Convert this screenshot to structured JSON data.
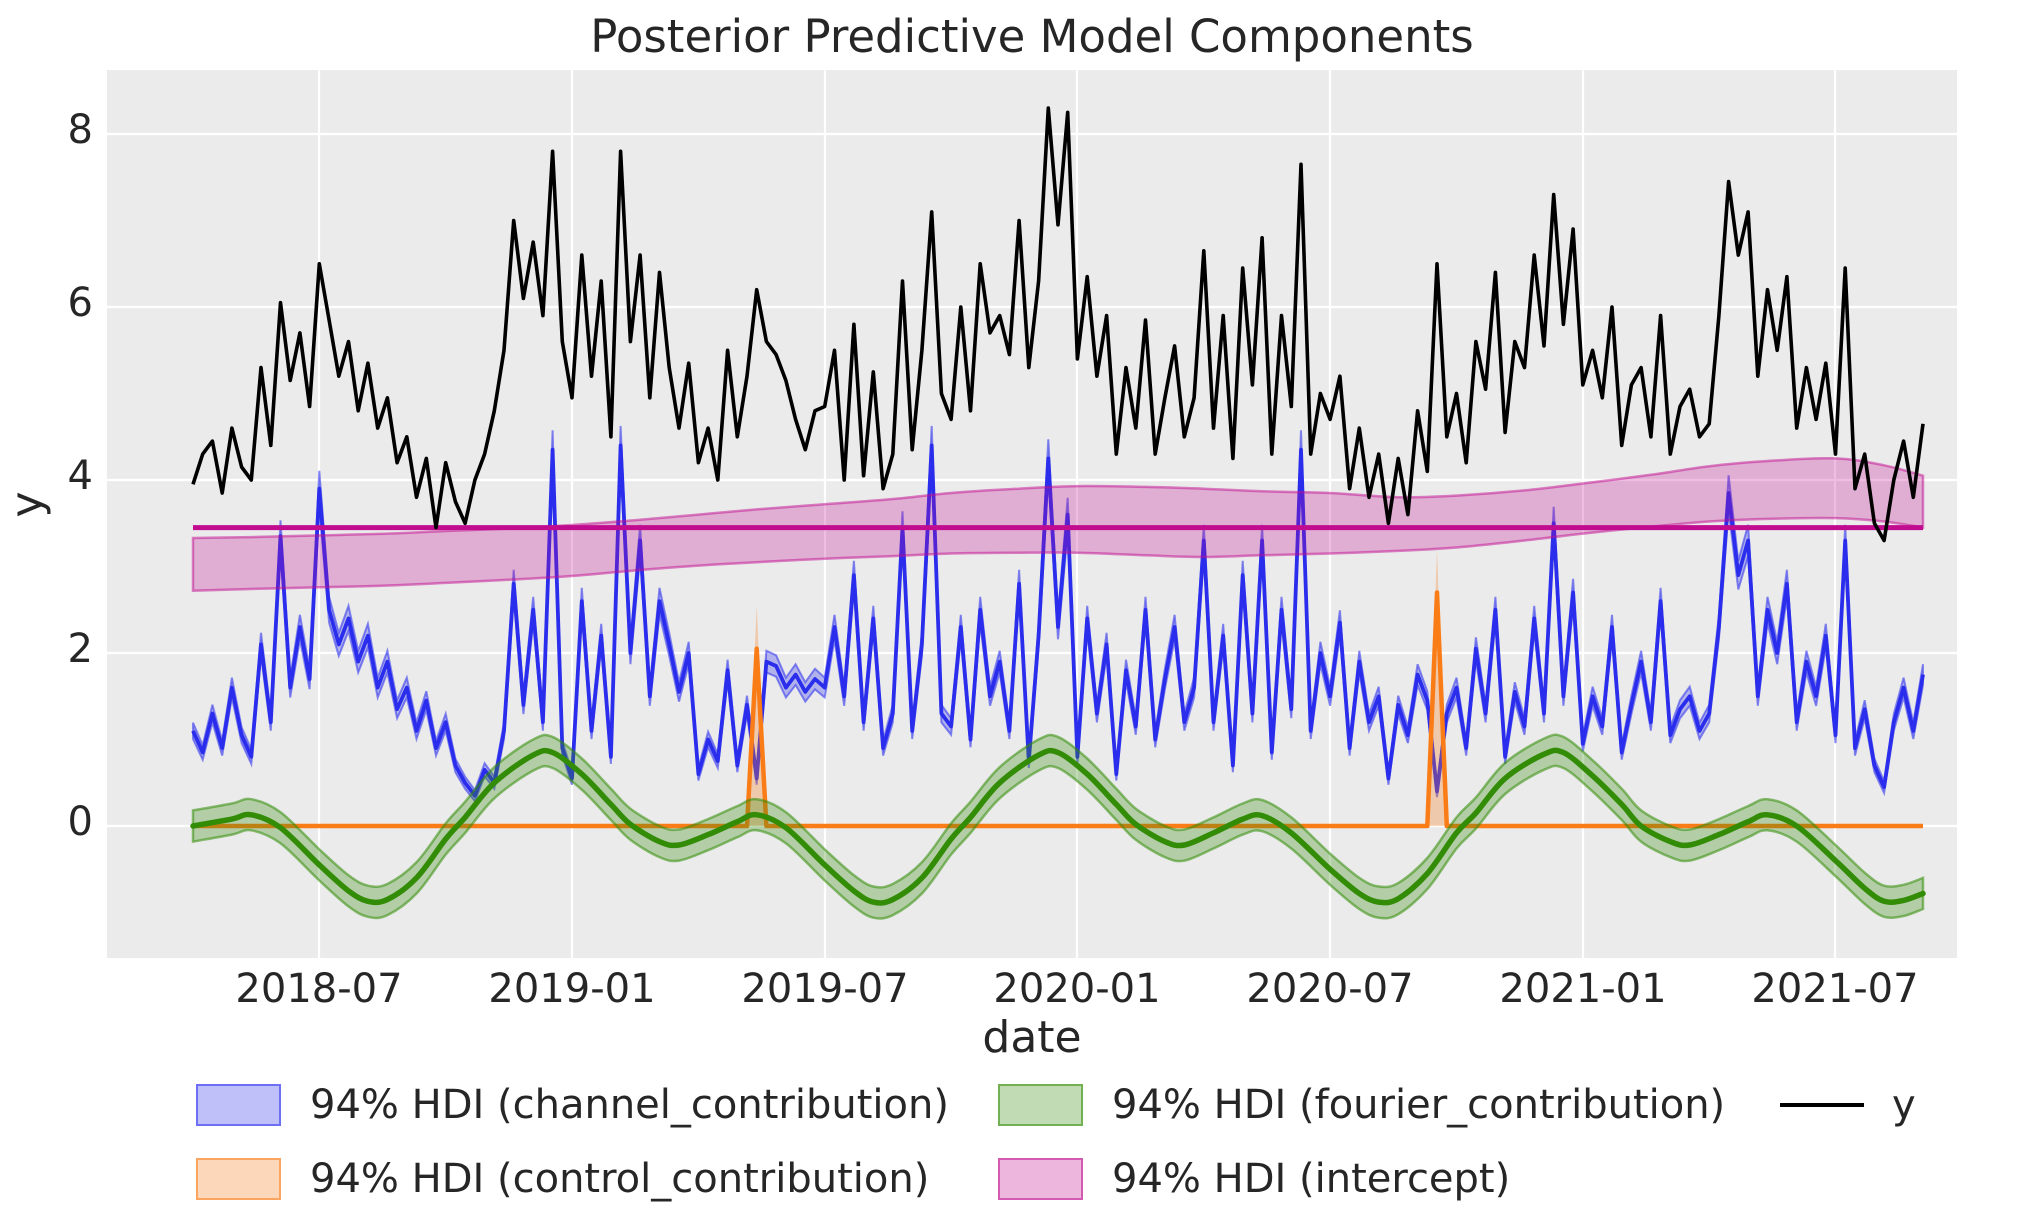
{
  "title": "Posterior Predictive Model Components",
  "axes": {
    "xlabel": "date",
    "ylabel": "y",
    "x_ticks": [
      "2018-07",
      "2019-01",
      "2019-07",
      "2020-01",
      "2020-07",
      "2021-01",
      "2021-07"
    ],
    "y_ticks": [
      "0",
      "2",
      "4",
      "6",
      "8"
    ]
  },
  "palette": {
    "channel": "#2a2eec",
    "control": "#fa7c17",
    "fourier": "#328c06",
    "intercept": "#c10c90",
    "y_line": "#000000",
    "plot_bg": "#ebebeb",
    "grid": "#ffffff",
    "text": "#262626",
    "band_alpha": 0.3,
    "band_edge_alpha": 0.55
  },
  "legend": [
    {
      "label": "94% HDI (channel_contribution)",
      "type": "patch",
      "color": "#2a2eec",
      "col": 0,
      "row": 0
    },
    {
      "label": "94% HDI (control_contribution)",
      "type": "patch",
      "color": "#fa7c17",
      "col": 0,
      "row": 1
    },
    {
      "label": "94% HDI (fourier_contribution)",
      "type": "patch",
      "color": "#328c06",
      "col": 1,
      "row": 0
    },
    {
      "label": "94% HDI (intercept)",
      "type": "patch",
      "color": "#c10c90",
      "col": 1,
      "row": 1
    },
    {
      "label": "y",
      "type": "line",
      "color": "#000000",
      "col": 2,
      "row": 0
    }
  ],
  "chart_data": {
    "type": "line",
    "title": "Posterior Predictive Model Components",
    "xlabel": "date",
    "ylabel": "y",
    "x_axis": {
      "start_date": "2018-04-02",
      "freq_days": 7,
      "n_points": 179,
      "tick_labels": [
        "2018-07",
        "2019-01",
        "2019-07",
        "2020-01",
        "2020-07",
        "2021-01",
        "2021-07"
      ]
    },
    "ylim": [
      -1.53,
      8.73
    ],
    "grid": true,
    "legend_position": "bottom",
    "series": [
      {
        "name": "y",
        "kind": "line",
        "color": "#000000",
        "values": [
          3.95,
          4.3,
          4.45,
          3.85,
          4.6,
          4.15,
          4.0,
          5.3,
          4.4,
          6.05,
          5.15,
          5.7,
          4.85,
          6.5,
          5.85,
          5.2,
          5.6,
          4.8,
          5.35,
          4.6,
          4.95,
          4.2,
          4.5,
          3.8,
          4.25,
          3.45,
          4.2,
          3.75,
          3.5,
          4.0,
          4.3,
          4.8,
          5.5,
          7.0,
          6.1,
          6.75,
          5.9,
          7.8,
          5.6,
          4.95,
          6.6,
          5.2,
          6.3,
          4.5,
          7.8,
          5.6,
          6.6,
          4.95,
          6.4,
          5.3,
          4.6,
          5.35,
          4.2,
          4.6,
          4.0,
          5.5,
          4.5,
          5.2,
          6.2,
          5.6,
          5.45,
          5.15,
          4.7,
          4.35,
          4.8,
          4.85,
          5.5,
          4.0,
          5.8,
          4.05,
          5.25,
          3.9,
          4.3,
          6.3,
          4.35,
          5.5,
          7.1,
          5.0,
          4.7,
          6.0,
          4.8,
          6.5,
          5.7,
          5.9,
          5.45,
          7.0,
          5.3,
          6.3,
          8.3,
          6.95,
          8.25,
          5.4,
          6.35,
          5.2,
          5.9,
          4.3,
          5.3,
          4.6,
          5.85,
          4.3,
          4.95,
          5.55,
          4.5,
          4.95,
          6.65,
          4.6,
          5.9,
          4.25,
          6.45,
          5.1,
          6.8,
          4.3,
          5.9,
          4.85,
          7.65,
          4.3,
          5.0,
          4.7,
          5.2,
          3.9,
          4.6,
          3.8,
          4.3,
          3.5,
          4.25,
          3.6,
          4.8,
          4.1,
          6.5,
          4.5,
          5.0,
          4.2,
          5.6,
          5.05,
          6.4,
          4.55,
          5.6,
          5.3,
          6.6,
          5.55,
          7.3,
          5.8,
          6.9,
          5.1,
          5.5,
          4.95,
          6.0,
          4.4,
          5.1,
          5.3,
          4.5,
          5.9,
          4.3,
          4.85,
          5.05,
          4.5,
          4.65,
          5.9,
          7.45,
          6.6,
          7.1,
          5.2,
          6.2,
          5.5,
          6.35,
          4.6,
          5.3,
          4.7,
          5.35,
          4.3,
          6.45,
          3.9,
          4.3,
          3.5,
          3.3,
          4.0,
          4.45,
          3.8,
          4.65
        ]
      },
      {
        "name": "channel_contribution",
        "kind": "line+hdi",
        "color": "#2a2eec",
        "hdi_label": "94% HDI (channel_contribution)",
        "hdi_halfwidth_base": 0.05,
        "hdi_halfwidth_scale": 0.04,
        "values": [
          1.1,
          0.85,
          1.3,
          0.9,
          1.6,
          1.05,
          0.8,
          2.1,
          1.2,
          3.35,
          1.6,
          2.3,
          1.7,
          3.9,
          2.5,
          2.1,
          2.4,
          1.9,
          2.2,
          1.6,
          1.9,
          1.35,
          1.6,
          1.1,
          1.45,
          0.9,
          1.2,
          0.7,
          0.5,
          0.35,
          0.65,
          0.5,
          1.1,
          2.8,
          1.4,
          2.5,
          1.2,
          4.35,
          0.9,
          0.55,
          2.6,
          1.1,
          2.2,
          0.8,
          4.4,
          2.0,
          3.3,
          1.5,
          2.6,
          2.1,
          1.55,
          2.0,
          0.6,
          1.0,
          0.75,
          1.8,
          0.7,
          1.4,
          0.55,
          1.9,
          1.85,
          1.6,
          1.75,
          1.55,
          1.7,
          1.6,
          2.3,
          1.5,
          2.9,
          1.2,
          2.4,
          0.9,
          1.3,
          3.45,
          1.1,
          2.1,
          4.4,
          1.3,
          1.15,
          2.3,
          1.0,
          2.5,
          1.5,
          1.9,
          1.1,
          2.8,
          0.75,
          2.2,
          4.25,
          2.3,
          3.6,
          0.8,
          2.4,
          1.3,
          2.1,
          0.6,
          1.8,
          1.15,
          2.5,
          1.0,
          1.7,
          2.3,
          1.2,
          1.6,
          3.3,
          1.2,
          2.2,
          0.7,
          2.9,
          1.3,
          3.3,
          0.85,
          2.5,
          1.35,
          4.35,
          1.1,
          2.0,
          1.5,
          2.35,
          0.9,
          1.9,
          1.2,
          1.5,
          0.55,
          1.4,
          1.05,
          1.75,
          1.45,
          0.4,
          1.3,
          1.6,
          0.9,
          2.05,
          1.3,
          2.5,
          0.8,
          1.55,
          1.15,
          2.4,
          1.3,
          3.5,
          1.5,
          2.7,
          0.95,
          1.5,
          1.15,
          2.3,
          0.85,
          1.4,
          1.9,
          1.2,
          2.6,
          1.05,
          1.35,
          1.5,
          1.1,
          1.3,
          2.3,
          3.85,
          2.9,
          3.3,
          1.5,
          2.5,
          2.0,
          2.8,
          1.2,
          1.9,
          1.5,
          2.2,
          1.05,
          3.3,
          0.9,
          1.35,
          0.7,
          0.45,
          1.2,
          1.6,
          1.1,
          1.75
        ]
      },
      {
        "name": "control_contribution",
        "kind": "line+hdi",
        "color": "#fa7c17",
        "hdi_label": "94% HDI (control_contribution)",
        "baseline": 0,
        "spikes": [
          {
            "week": 58,
            "approx_date": "2019-05-13",
            "mean": 2.05,
            "hdi_top": 2.55
          },
          {
            "week": 128,
            "approx_date": "2020-09-14",
            "mean": 2.7,
            "hdi_top": 3.2
          }
        ]
      },
      {
        "name": "fourier_contribution",
        "kind": "line+hdi",
        "color": "#328c06",
        "hdi_label": "94% HDI (fourier_contribution)",
        "hdi_halfwidth": 0.18,
        "points": [
          [
            0,
            0.0
          ],
          [
            4,
            0.08
          ],
          [
            6,
            0.13
          ],
          [
            9,
            -0.02
          ],
          [
            13,
            -0.45
          ],
          [
            16,
            -0.75
          ],
          [
            18,
            -0.87
          ],
          [
            20,
            -0.85
          ],
          [
            23,
            -0.6
          ],
          [
            26,
            -0.15
          ],
          [
            28,
            0.1
          ],
          [
            31,
            0.5
          ],
          [
            35,
            0.82
          ],
          [
            37,
            0.85
          ],
          [
            40,
            0.6
          ],
          [
            43,
            0.25
          ],
          [
            45,
            0.02
          ],
          [
            48,
            -0.18
          ],
          [
            50,
            -0.22
          ],
          [
            53,
            -0.1
          ],
          [
            56,
            0.05
          ],
          [
            58,
            0.13
          ],
          [
            61,
            -0.02
          ],
          [
            65,
            -0.45
          ],
          [
            68,
            -0.75
          ],
          [
            70,
            -0.88
          ],
          [
            72,
            -0.85
          ],
          [
            75,
            -0.6
          ],
          [
            78,
            -0.15
          ],
          [
            80,
            0.1
          ],
          [
            83,
            0.5
          ],
          [
            87,
            0.82
          ],
          [
            89,
            0.85
          ],
          [
            92,
            0.6
          ],
          [
            95,
            0.25
          ],
          [
            97,
            0.02
          ],
          [
            100,
            -0.18
          ],
          [
            102,
            -0.22
          ],
          [
            105,
            -0.08
          ],
          [
            108,
            0.08
          ],
          [
            110,
            0.12
          ],
          [
            113,
            -0.08
          ],
          [
            117,
            -0.5
          ],
          [
            120,
            -0.78
          ],
          [
            122,
            -0.88
          ],
          [
            124,
            -0.84
          ],
          [
            127,
            -0.55
          ],
          [
            130,
            -0.08
          ],
          [
            132,
            0.15
          ],
          [
            135,
            0.55
          ],
          [
            139,
            0.83
          ],
          [
            141,
            0.85
          ],
          [
            144,
            0.58
          ],
          [
            147,
            0.25
          ],
          [
            149,
            0.0
          ],
          [
            152,
            -0.18
          ],
          [
            154,
            -0.22
          ],
          [
            157,
            -0.1
          ],
          [
            160,
            0.05
          ],
          [
            162,
            0.13
          ],
          [
            165,
            0.0
          ],
          [
            169,
            -0.4
          ],
          [
            172,
            -0.72
          ],
          [
            174,
            -0.87
          ],
          [
            176,
            -0.86
          ],
          [
            178,
            -0.78
          ]
        ]
      },
      {
        "name": "intercept",
        "kind": "line+hdi",
        "color": "#c10c90",
        "hdi_label": "94% HDI (intercept)",
        "mean": 3.45,
        "hdi_points": [
          [
            0,
            2.72,
            3.33
          ],
          [
            6,
            2.74,
            3.34
          ],
          [
            13,
            2.76,
            3.36
          ],
          [
            20,
            2.78,
            3.38
          ],
          [
            26,
            2.81,
            3.41
          ],
          [
            33,
            2.85,
            3.44
          ],
          [
            39,
            2.89,
            3.48
          ],
          [
            46,
            2.96,
            3.54
          ],
          [
            52,
            3.01,
            3.6
          ],
          [
            58,
            3.05,
            3.66
          ],
          [
            65,
            3.09,
            3.72
          ],
          [
            72,
            3.12,
            3.78
          ],
          [
            78,
            3.15,
            3.85
          ],
          [
            85,
            3.16,
            3.9
          ],
          [
            91,
            3.16,
            3.93
          ],
          [
            98,
            3.13,
            3.92
          ],
          [
            104,
            3.11,
            3.9
          ],
          [
            110,
            3.13,
            3.87
          ],
          [
            117,
            3.15,
            3.85
          ],
          [
            124,
            3.18,
            3.8
          ],
          [
            130,
            3.22,
            3.82
          ],
          [
            137,
            3.3,
            3.88
          ],
          [
            143,
            3.38,
            3.96
          ],
          [
            150,
            3.46,
            4.06
          ],
          [
            156,
            3.52,
            4.16
          ],
          [
            162,
            3.55,
            4.22
          ],
          [
            169,
            3.56,
            4.25
          ],
          [
            174,
            3.52,
            4.17
          ],
          [
            178,
            3.45,
            4.05
          ]
        ]
      }
    ]
  }
}
